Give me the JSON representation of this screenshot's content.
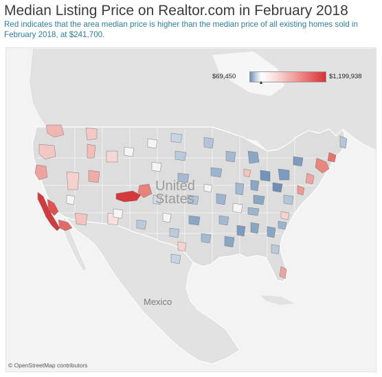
{
  "header": {
    "title": "Median Listing Price on Realtor.com in February 2018",
    "subtitle": "Red indicates that the area median price is higher than the  median price of all existing homes sold in February 2018, at $241,700."
  },
  "map": {
    "labels": {
      "us_line1": "United",
      "us_line2": "States",
      "mexico": "Mexico"
    },
    "attribution": "© OpenStreetMap contributors",
    "colors": {
      "background": "#f1f1f1",
      "land": "#e1e1e1",
      "water": "#f6f6f6",
      "border": "#ffffff",
      "low": "#6e8fb3",
      "mid": "#ffffff",
      "high": "#d92f34"
    }
  },
  "legend": {
    "min_label": "$69,450",
    "max_label": "$1,199,938",
    "reference_value": 241700,
    "min_value": 69450,
    "max_value": 1199938
  }
}
